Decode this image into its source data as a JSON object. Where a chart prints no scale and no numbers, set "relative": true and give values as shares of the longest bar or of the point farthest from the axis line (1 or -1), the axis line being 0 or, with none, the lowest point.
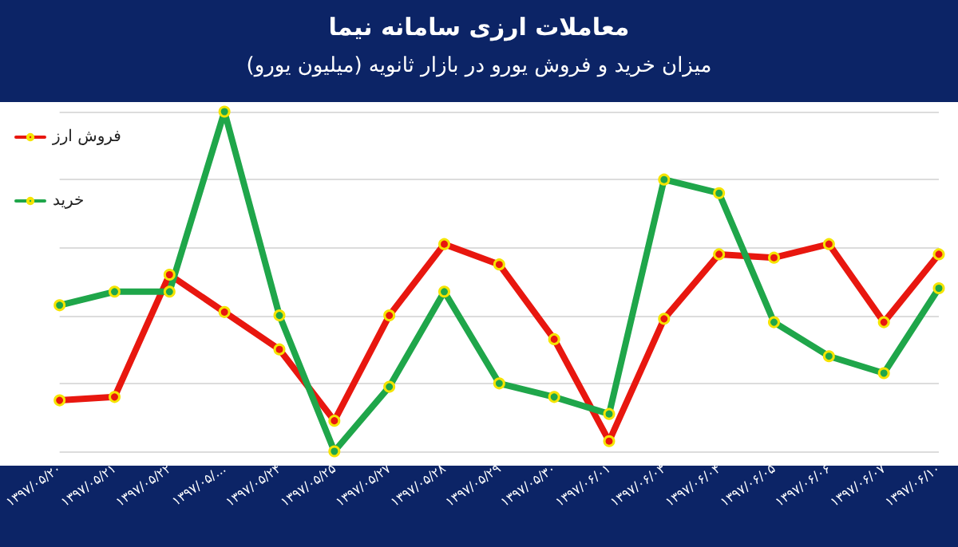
{
  "chart_data": {
    "type": "line",
    "title": "معاملات ارزی سامانه نیما",
    "subtitle": "میزان خرید و فروش یورو در بازار ثانویه (میلیون یورو)",
    "relative": true,
    "grid": "y",
    "legend": "top left",
    "marker": "circle",
    "line_style": "solid",
    "categories": [
      "۱۳۹۷/۰۵/۲۰",
      "۱۳۹۷/۰۵/۲۱",
      "۱۳۹۷/۰۵/۲۲",
      "۱۳۹۷/۰۵/...",
      "۱۳۹۷/۰۵/۲۴",
      "۱۳۹۷/۰۵/۲۵",
      "۱۳۹۷/۰۵/۲۷",
      "۱۳۹۷/۰۵/۲۸",
      "۱۳۹۷/۰۵/۲۹",
      "۱۳۹۷/۰۵/۳۰",
      "۱۳۹۷/۰۶/۰۱",
      "۱۳۹۷/۰۶/۰۳",
      "۱۳۹۷/۰۶/۰۴",
      "۱۳۹۷/۰۶/۰۵",
      "۱۳۹۷/۰۶/۰۶",
      "۱۳۹۷/۰۶/۰۷",
      "۱۳۹۷/۰۶/۱۰"
    ],
    "series": [
      {
        "name": "فروش ارز",
        "color": "#e8170f",
        "values": [
          0.15,
          0.16,
          0.52,
          0.41,
          0.3,
          0.09,
          0.4,
          0.61,
          0.55,
          0.33,
          0.03,
          0.39,
          0.58,
          0.57,
          0.61,
          0.38,
          0.58
        ]
      },
      {
        "name": "خرید",
        "color": "#1fa64a",
        "values": [
          0.43,
          0.47,
          0.47,
          1,
          0.4,
          0,
          0.19,
          0.47,
          0.2,
          0.16,
          0.11,
          0.8,
          0.76,
          0.38,
          0.28,
          0.23,
          0.48
        ]
      }
    ]
  }
}
